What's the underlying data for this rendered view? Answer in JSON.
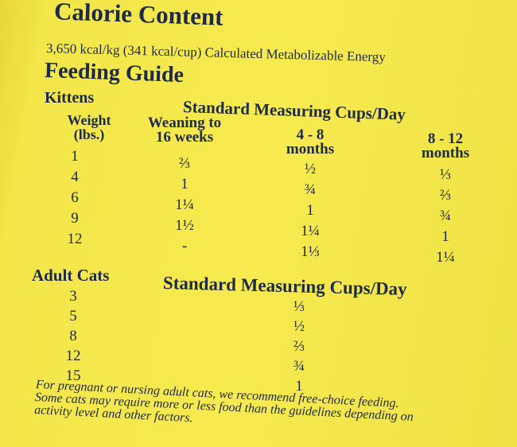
{
  "header": {
    "title": "Calorie Content",
    "subtitle": "3,650 kcal/kg (341 kcal/cup) Calculated Metabolizable Energy"
  },
  "feeding_guide": {
    "title": "Feeding Guide",
    "kittens": {
      "label": "Kittens",
      "caption": "Standard Measuring Cups/Day",
      "columns": [
        [
          "Weight",
          "(lbs.)"
        ],
        [
          "Weaning to",
          "16 weeks"
        ],
        [
          "4 - 8",
          "months"
        ],
        [
          "8 - 12",
          "months"
        ]
      ],
      "rows": [
        [
          "1",
          "⅔",
          "½",
          "⅓"
        ],
        [
          "4",
          "1",
          "¾",
          "⅔"
        ],
        [
          "6",
          "1¼",
          "1",
          "¾"
        ],
        [
          "9",
          "1½",
          "1¼",
          "1"
        ],
        [
          "12",
          "-",
          "1⅓",
          "1¼"
        ]
      ]
    },
    "adults": {
      "label": "Adult Cats",
      "caption": "Standard Measuring Cups/Day",
      "rows": [
        [
          "3",
          "⅓"
        ],
        [
          "5",
          "½"
        ],
        [
          "8",
          "⅔"
        ],
        [
          "12",
          "¾"
        ],
        [
          "15",
          "1"
        ]
      ]
    },
    "notes": [
      "For pregnant or nursing adult cats, we recommend free-choice feeding.",
      "Some cats may require more or less food than the guidelines depending on",
      "activity level and other factors."
    ]
  }
}
